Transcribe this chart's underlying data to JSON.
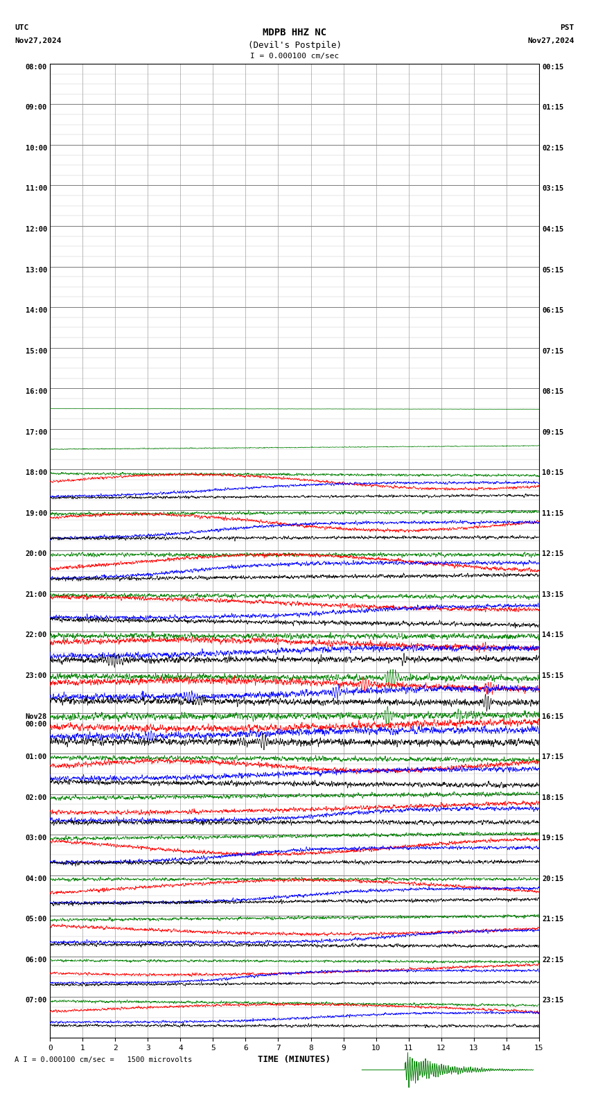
{
  "title_line1": "MDPB HHZ NC",
  "title_line2": "(Devil's Postpile)",
  "scale_label": "I = 0.000100 cm/sec",
  "bottom_label": "A I = 0.000100 cm/sec =   1500 microvolts",
  "xlabel": "TIME (MINUTES)",
  "left_label_top": "UTC",
  "left_label_date": "Nov27,2024",
  "right_label_top": "PST",
  "right_label_date": "Nov27,2024",
  "utc_times_left": [
    "08:00",
    "09:00",
    "10:00",
    "11:00",
    "12:00",
    "13:00",
    "14:00",
    "15:00",
    "16:00",
    "17:00",
    "18:00",
    "19:00",
    "20:00",
    "21:00",
    "22:00",
    "23:00",
    "Nov28\n00:00",
    "01:00",
    "02:00",
    "03:00",
    "04:00",
    "05:00",
    "06:00",
    "07:00"
  ],
  "pst_times_right": [
    "00:15",
    "01:15",
    "02:15",
    "03:15",
    "04:15",
    "05:15",
    "06:15",
    "07:15",
    "08:15",
    "09:15",
    "10:15",
    "11:15",
    "12:15",
    "13:15",
    "14:15",
    "15:15",
    "16:15",
    "17:15",
    "18:15",
    "19:15",
    "20:15",
    "21:15",
    "22:15",
    "23:15"
  ],
  "bg_color": "#ffffff",
  "grid_color": "#888888",
  "line_colors_order": [
    "#008000",
    "#ff0000",
    "#0000ff",
    "#000000"
  ],
  "n_rows": 24,
  "x_min": 0,
  "x_max": 15,
  "x_ticks": [
    0,
    1,
    2,
    3,
    4,
    5,
    6,
    7,
    8,
    9,
    10,
    11,
    12,
    13,
    14,
    15
  ]
}
